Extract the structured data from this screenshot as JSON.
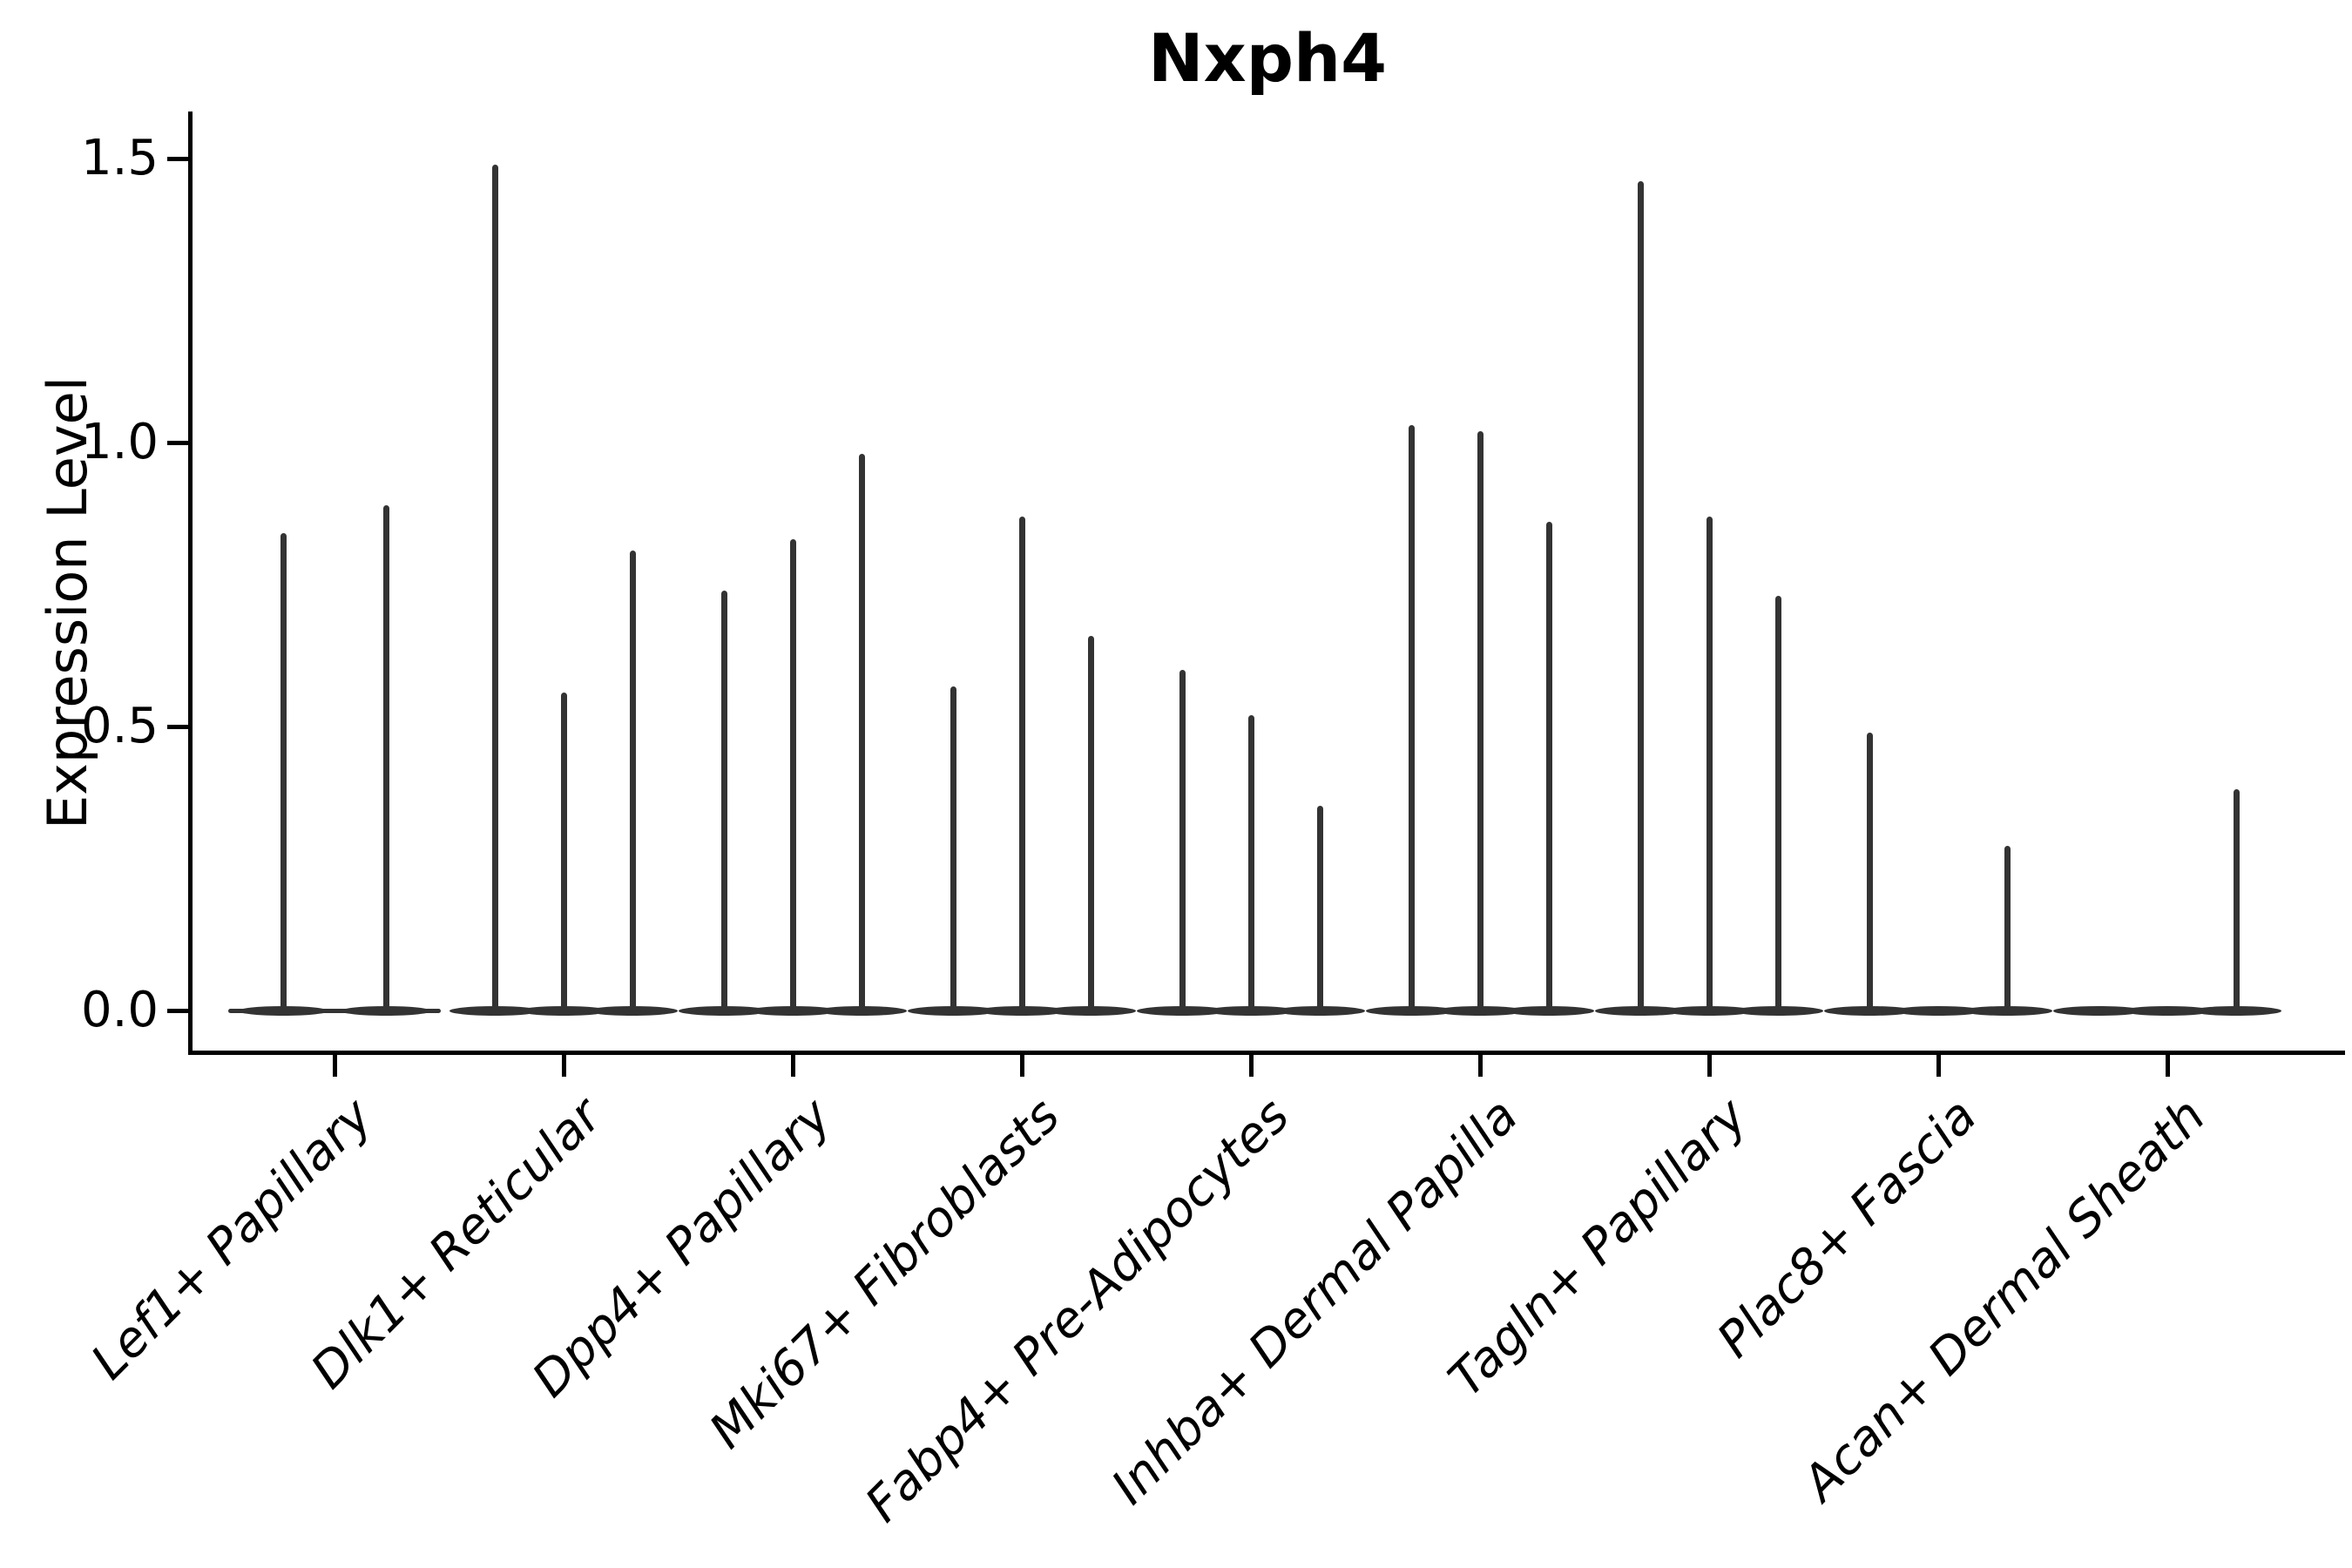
{
  "page": {
    "background": "#ffffff"
  },
  "colors": {
    "violin": "#333333",
    "axis": "#000000",
    "text": "#000000",
    "background": "#ffffff"
  },
  "chart_data": {
    "type": "violin",
    "title": "Nxph4",
    "xlabel": "",
    "ylabel": "Expression Level",
    "ylim": [
      -0.07,
      1.58
    ],
    "yticks": [
      0.0,
      0.5,
      1.0,
      1.5
    ],
    "ytick_labels": [
      "0.0",
      "0.5",
      "1.0",
      "1.5"
    ],
    "grid": false,
    "legend": null,
    "orientation": "vertical",
    "shape_note": "each violin is a flat pancake at expression 0 with a single hair-thin spike rising to its maximum; zero entries are completely flat violins",
    "categories": [
      "Lef1+ Papillary",
      "Dlk1+ Reticular",
      "Dpp4+ Papillary",
      "Mki67+ Fibroblasts",
      "Fabp4+ Pre-Adipocytes",
      "Inhba+ Dermal Papilla",
      "Tagln+ Papillary",
      "Plac8+ Fascia",
      "Acan+ Dermal Sheath"
    ],
    "groups": [
      {
        "category": "Lef1+ Papillary",
        "violin_maxima": [
          0.84,
          0.89
        ]
      },
      {
        "category": "Dlk1+ Reticular",
        "violin_maxima": [
          1.49,
          0.56,
          0.81
        ]
      },
      {
        "category": "Dpp4+ Papillary",
        "violin_maxima": [
          0.74,
          0.83,
          0.98
        ]
      },
      {
        "category": "Mki67+ Fibroblasts",
        "violin_maxima": [
          0.57,
          0.87,
          0.66
        ]
      },
      {
        "category": "Fabp4+ Pre-Adipocytes",
        "violin_maxima": [
          0.6,
          0.52,
          0.36
        ]
      },
      {
        "category": "Inhba+ Dermal Papilla",
        "violin_maxima": [
          1.03,
          1.02,
          0.86
        ]
      },
      {
        "category": "Tagln+ Papillary",
        "violin_maxima": [
          1.46,
          0.87,
          0.73
        ]
      },
      {
        "category": "Plac8+ Fascia",
        "violin_maxima": [
          0.49,
          0.0,
          0.29
        ]
      },
      {
        "category": "Acan+ Dermal Sheath",
        "violin_maxima": [
          0.0,
          0.0,
          0.39
        ]
      }
    ]
  }
}
